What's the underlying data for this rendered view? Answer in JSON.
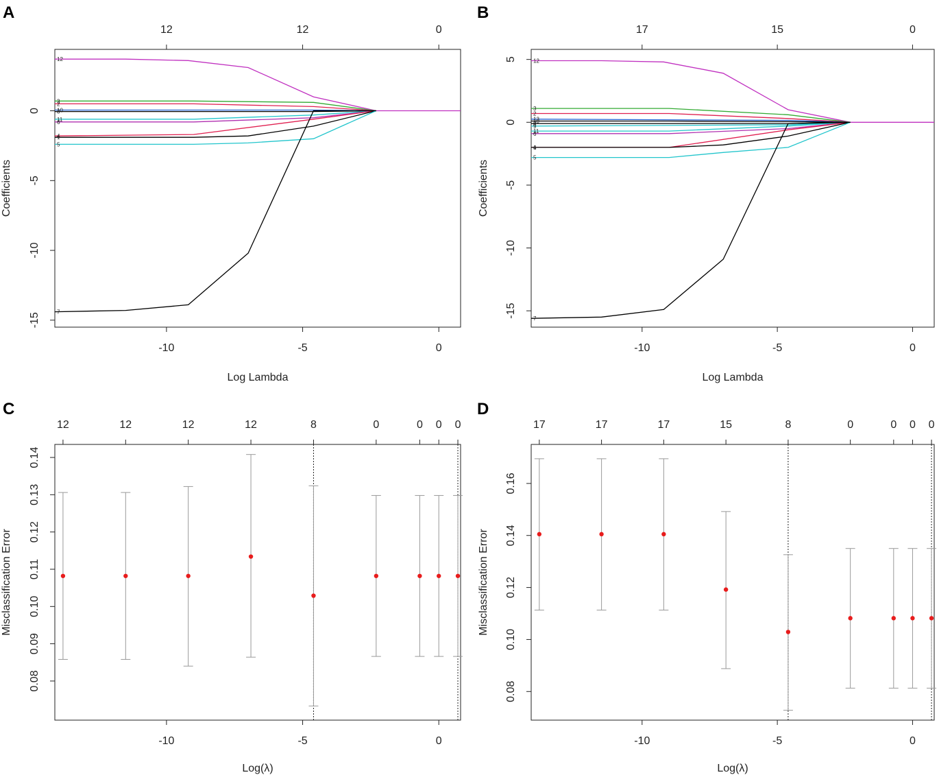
{
  "chart_data": [
    {
      "id": "A",
      "type": "line",
      "panel_label": "A",
      "xlabel": "Log Lambda",
      "ylabel": "Coefficients",
      "xlim": [
        -14.1,
        0.8
      ],
      "ylim": [
        -15.5,
        4.4
      ],
      "x_ticks": [
        -10,
        -5,
        0
      ],
      "y_ticks": [
        -15,
        -10,
        -5,
        0
      ],
      "top_axis": {
        "ticks": [
          -10,
          -5,
          0
        ],
        "labels": [
          "12",
          "12",
          "0"
        ]
      },
      "series": [
        {
          "name": "12",
          "color": "#c030c0",
          "x": [
            -14.1,
            -11.5,
            -9.2,
            -7,
            -4.6,
            -2.3,
            0.8
          ],
          "values": [
            3.7,
            3.7,
            3.6,
            3.1,
            1.0,
            0,
            0
          ]
        },
        {
          "name": "3",
          "color": "#33aa33",
          "x": [
            -14.1,
            -9,
            -4.6,
            -2.3
          ],
          "values": [
            0.7,
            0.7,
            0.6,
            0
          ]
        },
        {
          "name": "2",
          "color": "#e02050",
          "x": [
            -14.1,
            -9,
            -4.6,
            -2.3
          ],
          "values": [
            0.5,
            0.5,
            0.3,
            0
          ]
        },
        {
          "name": "10",
          "color": "#1f5fd0",
          "x": [
            -14.1,
            -4.6,
            -2.3
          ],
          "values": [
            0.05,
            0.05,
            0
          ]
        },
        {
          "name": "8",
          "color": "#000000",
          "x": [
            -14.1,
            -4.6,
            -2.3
          ],
          "values": [
            -0.05,
            -0.05,
            0
          ]
        },
        {
          "name": "11",
          "color": "#22c5cc",
          "x": [
            -14.1,
            -9,
            -4.6,
            -2.3
          ],
          "values": [
            -0.6,
            -0.6,
            -0.3,
            0
          ]
        },
        {
          "name": "6",
          "color": "#b030b0",
          "x": [
            -14.1,
            -9,
            -4.6,
            -2.3
          ],
          "values": [
            -0.8,
            -0.8,
            -0.5,
            0
          ]
        },
        {
          "name": "4",
          "color": "#e02050",
          "x": [
            -14.1,
            -9,
            -4.6,
            -2.3
          ],
          "values": [
            -1.8,
            -1.7,
            -0.6,
            0
          ]
        },
        {
          "name": "1",
          "color": "#000000",
          "x": [
            -14.1,
            -9,
            -7,
            -4.6,
            -2.3
          ],
          "values": [
            -1.9,
            -1.9,
            -1.8,
            -1.1,
            0
          ]
        },
        {
          "name": "5",
          "color": "#22c5cc",
          "x": [
            -14.1,
            -9,
            -7,
            -4.6,
            -2.3
          ],
          "values": [
            -2.4,
            -2.4,
            -2.3,
            -2.0,
            0
          ]
        },
        {
          "name": "7",
          "color": "#000000",
          "x": [
            -14.1,
            -11.5,
            -9.2,
            -7,
            -4.6,
            -2.3
          ],
          "values": [
            -14.4,
            -14.3,
            -13.9,
            -10.2,
            0,
            0
          ]
        }
      ]
    },
    {
      "id": "B",
      "type": "line",
      "panel_label": "B",
      "xlabel": "Log Lambda",
      "ylabel": "Coefficients",
      "xlim": [
        -14.1,
        0.8
      ],
      "ylim": [
        -16.3,
        5.8
      ],
      "x_ticks": [
        -10,
        -5,
        0
      ],
      "y_ticks": [
        -15,
        -10,
        -5,
        0,
        5
      ],
      "top_axis": {
        "ticks": [
          -10,
          -5,
          0
        ],
        "labels": [
          "17",
          "15",
          "0"
        ]
      },
      "series": [
        {
          "name": "12",
          "color": "#c030c0",
          "x": [
            -14.1,
            -11.5,
            -9.2,
            -7,
            -4.6,
            -2.3,
            0.8
          ],
          "values": [
            4.9,
            4.9,
            4.8,
            3.9,
            1.0,
            0,
            0
          ]
        },
        {
          "name": "3",
          "color": "#33aa33",
          "x": [
            -14.1,
            -9,
            -4.6,
            -2.3
          ],
          "values": [
            1.1,
            1.1,
            0.6,
            0
          ]
        },
        {
          "name": "2",
          "color": "#e02050",
          "x": [
            -14.1,
            -9,
            -4.6,
            -2.3
          ],
          "values": [
            0.7,
            0.7,
            0.3,
            0
          ]
        },
        {
          "name": "13",
          "color": "#1f5fd0",
          "x": [
            -14.1,
            -4.6,
            -2.3
          ],
          "values": [
            0.25,
            0.15,
            0
          ]
        },
        {
          "name": "10",
          "color": "#000000",
          "x": [
            -14.1,
            -9,
            -4.6,
            -2.3
          ],
          "values": [
            0.1,
            0.1,
            0.05,
            0
          ]
        },
        {
          "name": "8",
          "color": "#000000",
          "x": [
            -14.1,
            -4.6,
            -2.3
          ],
          "values": [
            -0.1,
            -0.1,
            0
          ]
        },
        {
          "name": "9",
          "color": "#22c5cc",
          "x": [
            -14.1,
            -4.6,
            -2.3
          ],
          "values": [
            -0.3,
            -0.2,
            0
          ]
        },
        {
          "name": "11",
          "color": "#22c5cc",
          "x": [
            -14.1,
            -9,
            -4.6,
            -2.3
          ],
          "values": [
            -0.7,
            -0.7,
            -0.3,
            0
          ]
        },
        {
          "name": "6",
          "color": "#b030b0",
          "x": [
            -14.1,
            -9,
            -4.6,
            -2.3
          ],
          "values": [
            -0.9,
            -0.9,
            -0.5,
            0
          ]
        },
        {
          "name": "4",
          "color": "#e02050",
          "x": [
            -14.1,
            -9,
            -4.6,
            -2.3
          ],
          "values": [
            -2.0,
            -2.0,
            -0.6,
            0
          ]
        },
        {
          "name": "1",
          "color": "#000000",
          "x": [
            -14.1,
            -9,
            -7,
            -4.6,
            -2.3
          ],
          "values": [
            -2.0,
            -2.0,
            -1.8,
            -1.1,
            0
          ]
        },
        {
          "name": "5",
          "color": "#22c5cc",
          "x": [
            -14.1,
            -9,
            -7,
            -4.6,
            -2.3
          ],
          "values": [
            -2.8,
            -2.8,
            -2.4,
            -2.0,
            0
          ]
        },
        {
          "name": "7",
          "color": "#000000",
          "x": [
            -14.1,
            -11.5,
            -9.2,
            -7,
            -4.6,
            -2.3
          ],
          "values": [
            -15.6,
            -15.5,
            -14.9,
            -10.9,
            -0.1,
            0
          ]
        }
      ]
    },
    {
      "id": "C",
      "type": "scatter",
      "panel_label": "C",
      "xlabel": "Log(λ)",
      "ylabel": "Misclassification Error",
      "xlim": [
        -14.1,
        0.8
      ],
      "ylim": [
        0.0695,
        0.1435
      ],
      "x_ticks": [
        -10,
        -5,
        0
      ],
      "y_ticks": [
        0.08,
        0.09,
        0.1,
        0.11,
        0.12,
        0.13,
        0.14
      ],
      "y_tick_labels": [
        "0.08",
        "0.09",
        "0.10",
        "0.11",
        "0.12",
        "0.13",
        "0.14"
      ],
      "top_axis": {
        "ticks": [
          -13.8,
          -11.5,
          -9.2,
          -6.9,
          -4.6,
          -2.3,
          -0.7,
          0,
          0.7
        ],
        "labels": [
          "12",
          "12",
          "12",
          "12",
          "8",
          "0",
          "0",
          "0",
          "0"
        ]
      },
      "points": {
        "x": [
          -13.8,
          -11.5,
          -9.2,
          -6.9,
          -4.6,
          -2.3,
          -0.7,
          0,
          0.7
        ],
        "y": [
          0.1082,
          0.1082,
          0.1082,
          0.1134,
          0.1029,
          0.1082,
          0.1082,
          0.1082,
          0.1082
        ],
        "upper": [
          0.1306,
          0.1306,
          0.1322,
          0.1408,
          0.1324,
          0.1298,
          0.1298,
          0.1298,
          0.1298
        ],
        "lower": [
          0.0858,
          0.0858,
          0.084,
          0.0864,
          0.0733,
          0.0866,
          0.0866,
          0.0866,
          0.0866
        ]
      },
      "vlines": [
        -4.6,
        0.7
      ]
    },
    {
      "id": "D",
      "type": "scatter",
      "panel_label": "D",
      "xlabel": "Log(λ)",
      "ylabel": "Misclassification Error",
      "xlim": [
        -14.1,
        0.8
      ],
      "ylim": [
        0.069,
        0.175
      ],
      "x_ticks": [
        -10,
        -5,
        0
      ],
      "y_ticks": [
        0.08,
        0.1,
        0.12,
        0.14,
        0.16
      ],
      "y_tick_labels": [
        "0.08",
        "0.10",
        "0.12",
        "0.14",
        "0.16"
      ],
      "top_axis": {
        "ticks": [
          -13.8,
          -11.5,
          -9.2,
          -6.9,
          -4.6,
          -2.3,
          -0.7,
          0,
          0.7
        ],
        "labels": [
          "17",
          "17",
          "17",
          "15",
          "8",
          "0",
          "0",
          "0",
          "0"
        ]
      },
      "points": {
        "x": [
          -13.8,
          -11.5,
          -9.2,
          -6.9,
          -4.6,
          -2.3,
          -0.7,
          0,
          0.7
        ],
        "y": [
          0.1405,
          0.1405,
          0.1405,
          0.1192,
          0.1029,
          0.1082,
          0.1082,
          0.1082,
          0.1082
        ],
        "upper": [
          0.1695,
          0.1695,
          0.1695,
          0.1492,
          0.1326,
          0.135,
          0.135,
          0.135,
          0.135
        ],
        "lower": [
          0.1113,
          0.1113,
          0.1113,
          0.0888,
          0.0728,
          0.0813,
          0.0813,
          0.0813,
          0.0813
        ]
      },
      "vlines": [
        -4.6,
        0.7
      ]
    }
  ]
}
